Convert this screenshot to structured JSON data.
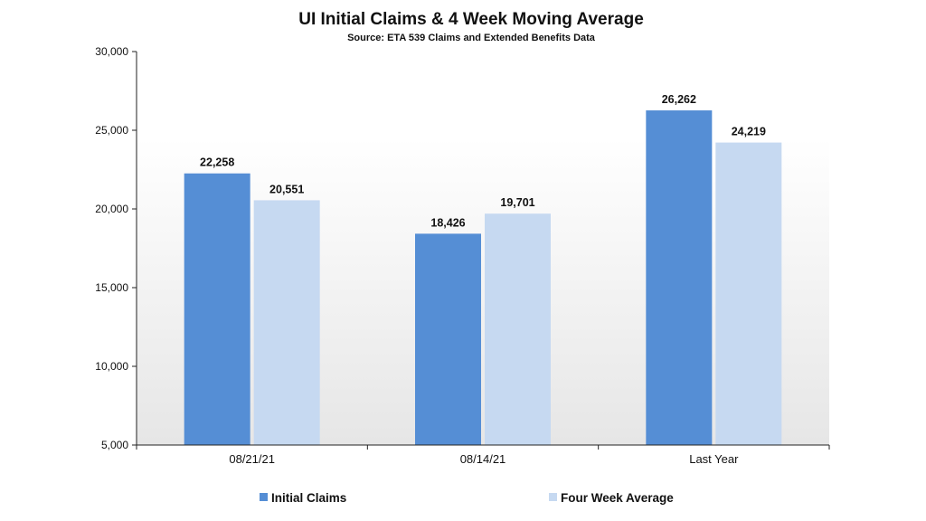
{
  "chart_data": {
    "type": "bar",
    "title": "UI Initial Claims &  4 Week Moving Average",
    "subtitle": "Source: ETA 539 Claims and Extended Benefits Data",
    "xlabel": "",
    "ylabel": "",
    "categories": [
      "08/21/21",
      "08/14/21",
      "Last Year"
    ],
    "series": [
      {
        "name": "Initial Claims",
        "values": [
          22258,
          18426,
          26262
        ],
        "labels": [
          "22,258",
          "18,426",
          "26,262"
        ],
        "color": "#558ed5"
      },
      {
        "name": "Four Week Average",
        "values": [
          20551,
          19701,
          24219
        ],
        "labels": [
          "20,551",
          "19,701",
          "24,219"
        ],
        "color": "#c6d9f1"
      }
    ],
    "ylim": [
      5000,
      30000
    ],
    "yticks": [
      5000,
      10000,
      15000,
      20000,
      25000,
      30000
    ],
    "ytick_labels": [
      "5,000",
      "10,000",
      "15,000",
      "20,000",
      "25,000",
      "30,000"
    ],
    "grid": false,
    "legend_position": "bottom",
    "plot_background": "gradient-white-to-light-gray"
  }
}
